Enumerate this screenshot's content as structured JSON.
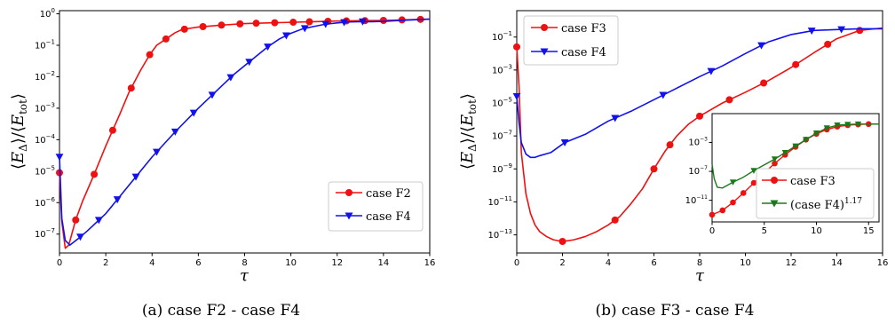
{
  "chart_data": [
    {
      "type": "line",
      "caption": "(a)  case F2 - case F4",
      "xlabel": "τ",
      "ylabel": "⟨E_Δ⟩/⟨E_tot⟩",
      "xlim": [
        0,
        16
      ],
      "ylog": true,
      "ylim_log10": [
        -7.6,
        0.1
      ],
      "x_ticks": [
        0,
        2,
        4,
        6,
        8,
        10,
        12,
        14,
        16
      ],
      "y_tick_exponents": [
        0,
        -1,
        -2,
        -3,
        -4,
        -5,
        -6,
        -7
      ],
      "legend_position": "lower-right",
      "series": [
        {
          "name": "case F2",
          "color": "#ee1111",
          "marker": "circle",
          "x": [
            0.0,
            0.1,
            0.25,
            0.4,
            0.7,
            1.0,
            1.5,
            2.0,
            2.3,
            2.6,
            3.0,
            3.5,
            3.9,
            4.2,
            4.6,
            5.0,
            5.3,
            6.0,
            7.0,
            8.0,
            9.0,
            10.0,
            11.0,
            12.0,
            13.0,
            14.0,
            15.0,
            16.0
          ],
          "log10y": [
            -5.05,
            -6.6,
            -7.45,
            -7.35,
            -6.55,
            -5.95,
            -5.1,
            -4.2,
            -3.7,
            -3.2,
            -2.5,
            -1.8,
            -1.3,
            -1.0,
            -0.8,
            -0.6,
            -0.5,
            -0.42,
            -0.36,
            -0.31,
            -0.29,
            -0.27,
            -0.25,
            -0.23,
            -0.22,
            -0.21,
            -0.19,
            -0.17
          ],
          "markers_x": [
            0.0,
            0.7,
            1.5,
            2.3,
            3.1,
            3.9,
            4.6,
            5.4,
            6.2,
            7.0,
            7.8,
            8.5,
            9.3,
            10.1,
            10.8,
            11.6,
            12.4,
            13.2,
            14.0,
            14.8,
            15.6
          ]
        },
        {
          "name": "case F4",
          "color": "#1111ee",
          "marker": "triangle-down",
          "x": [
            0.0,
            0.1,
            0.25,
            0.45,
            0.8,
            1.2,
            2.0,
            3.0,
            4.0,
            5.0,
            6.0,
            7.0,
            7.5,
            8.0,
            8.5,
            9.0,
            9.5,
            10.0,
            10.5,
            11.0,
            11.5,
            12.0,
            12.5,
            13.0,
            13.5,
            14.0,
            15.0,
            16.0
          ],
          "log10y": [
            -4.55,
            -6.5,
            -7.2,
            -7.35,
            -7.15,
            -6.9,
            -6.35,
            -5.45,
            -4.55,
            -3.75,
            -3.0,
            -2.3,
            -1.95,
            -1.65,
            -1.35,
            -1.05,
            -0.8,
            -0.62,
            -0.48,
            -0.4,
            -0.33,
            -0.29,
            -0.26,
            -0.25,
            -0.25,
            -0.24,
            -0.2,
            -0.17
          ],
          "markers_x": [
            0.0,
            0.9,
            1.7,
            2.5,
            3.3,
            4.2,
            5.0,
            5.8,
            6.6,
            7.4,
            8.2,
            9.0,
            9.8,
            10.6,
            11.5,
            12.3,
            13.1
          ]
        }
      ]
    },
    {
      "type": "line",
      "caption": "(b)  case F3 - case F4",
      "xlabel": "τ",
      "ylabel": "⟨E_Δ⟩/⟨E_tot⟩",
      "xlim": [
        0,
        16
      ],
      "ylog": true,
      "ylim_log10": [
        -14.1,
        0.6
      ],
      "x_ticks": [
        0,
        2,
        4,
        6,
        8,
        10,
        12,
        14,
        16
      ],
      "y_tick_exponents": [
        -1,
        -3,
        -5,
        -7,
        -9,
        -11,
        -13
      ],
      "legend_position": "upper-left",
      "series": [
        {
          "name": "case F3",
          "color": "#ee1111",
          "marker": "circle",
          "x": [
            0.0,
            0.1,
            0.2,
            0.4,
            0.6,
            0.8,
            1.0,
            1.3,
            1.6,
            2.0,
            2.5,
            3.0,
            3.5,
            4.0,
            4.5,
            5.0,
            5.5,
            6.0,
            6.5,
            7.0,
            7.5,
            8.0,
            8.5,
            9.0,
            10.0,
            11.0,
            12.0,
            13.0,
            14.0,
            15.0,
            16.0
          ],
          "log10y": [
            -1.6,
            -4.0,
            -8.0,
            -10.5,
            -11.7,
            -12.4,
            -12.8,
            -13.1,
            -13.3,
            -13.4,
            -13.3,
            -13.1,
            -12.8,
            -12.4,
            -11.9,
            -11.1,
            -10.2,
            -9.0,
            -7.9,
            -7.0,
            -6.3,
            -5.8,
            -5.4,
            -5.0,
            -4.35,
            -3.65,
            -2.85,
            -1.95,
            -1.1,
            -0.6,
            -0.45
          ],
          "markers_x": [
            0.0,
            2.0,
            4.3,
            6.0,
            6.7,
            8.0,
            9.3,
            10.8,
            12.2,
            13.6,
            15.0
          ]
        },
        {
          "name": "case F4",
          "color": "#1111ee",
          "marker": "triangle-down",
          "x": [
            0.0,
            0.1,
            0.2,
            0.4,
            0.6,
            0.8,
            1.0,
            1.5,
            2.1,
            3.0,
            4.0,
            5.0,
            6.0,
            7.0,
            8.0,
            9.0,
            10.0,
            11.0,
            12.0,
            13.0,
            14.0,
            15.0,
            16.0
          ],
          "log10y": [
            -4.6,
            -6.2,
            -7.4,
            -8.1,
            -8.3,
            -8.3,
            -8.2,
            -8.0,
            -7.4,
            -6.9,
            -6.1,
            -5.5,
            -4.8,
            -4.1,
            -3.4,
            -2.75,
            -2.0,
            -1.3,
            -0.85,
            -0.6,
            -0.55,
            -0.5,
            -0.5
          ],
          "markers_x": [
            0.0,
            2.1,
            4.3,
            6.4,
            8.5,
            10.7,
            12.9,
            14.2
          ]
        }
      ],
      "inset": {
        "xlim": [
          0,
          16
        ],
        "ylim_log10": [
          -14,
          1
        ],
        "x_ticks": [
          0,
          5,
          10,
          15
        ],
        "y_tick_exponents": [
          -3,
          -7,
          -11
        ],
        "legend_position": "lower-right",
        "series": [
          {
            "name": "case F3",
            "color": "#ee1111",
            "marker": "circle",
            "x": [
              0.0,
              1.0,
              2.0,
              3.0,
              4.0,
              5.0,
              6.0,
              7.0,
              8.0,
              9.0,
              10.0,
              11.0,
              12.0,
              13.0,
              14.0,
              15.0,
              16.0
            ],
            "log10y": [
              -13.0,
              -12.4,
              -11.3,
              -10.0,
              -8.6,
              -7.2,
              -5.9,
              -4.7,
              -3.6,
              -2.6,
              -1.8,
              -1.2,
              -0.8,
              -0.6,
              -0.5,
              -0.45,
              -0.45
            ],
            "markers_x": [
              0.0,
              1.0,
              2.0,
              3.0,
              4.0,
              5.0,
              6.0,
              7.0,
              8.0,
              9.0,
              10.0,
              11.0,
              12.0,
              13.0,
              14.0,
              15.0
            ]
          },
          {
            "name": "(case F4)^1.17",
            "label_base": "(case F4)",
            "label_exp": "1.17",
            "color": "#1a7a1a",
            "marker": "triangle-down",
            "x": [
              0.0,
              0.2,
              0.5,
              1.0,
              2.0,
              3.0,
              4.0,
              5.0,
              6.0,
              7.0,
              8.0,
              9.0,
              10.0,
              11.0,
              12.0,
              13.0,
              14.0,
              15.0,
              16.0
            ],
            "log10y": [
              -6.0,
              -8.0,
              -9.2,
              -9.3,
              -8.5,
              -7.8,
              -6.9,
              -6.1,
              -5.3,
              -4.4,
              -3.5,
              -2.6,
              -1.7,
              -1.0,
              -0.6,
              -0.5,
              -0.45,
              -0.45,
              -0.45
            ],
            "markers_x": [
              2.0,
              4.0,
              6.0,
              7.0,
              8.0,
              9.0,
              10.0,
              11.0,
              12.0,
              13.0,
              14.0
            ]
          }
        ]
      }
    }
  ]
}
